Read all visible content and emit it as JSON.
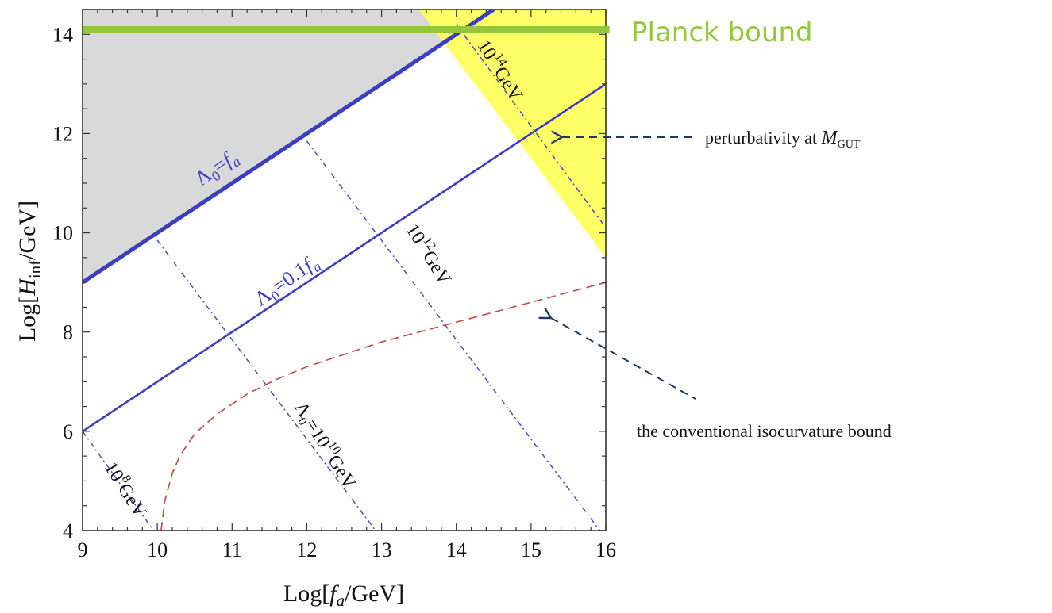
{
  "chart_data": {
    "type": "line",
    "xlabel": "Log[f_a/GeV]",
    "ylabel": "Log[H_inf/GeV]",
    "xlim": [
      9,
      16
    ],
    "ylim": [
      4,
      14.5
    ],
    "xticks": [
      9,
      10,
      11,
      12,
      13,
      14,
      15,
      16
    ],
    "yticks": [
      4,
      6,
      8,
      10,
      12,
      14
    ],
    "grid": false,
    "colors": {
      "axis": "#333333",
      "solid_line": "#3b3fbf",
      "dashdot_line": "#4a4ec0",
      "isocurvature": "#c0504d",
      "planck": "#92c83e",
      "excluded_fill": "#d9d9d9",
      "perturbativity_fill": "#ffff66",
      "annotation_arrow": "#1f3864"
    },
    "regions": [
      {
        "name": "excluded",
        "polygon": [
          [
            9,
            9
          ],
          [
            14.5,
            14.5
          ],
          [
            9,
            14.5
          ]
        ]
      },
      {
        "name": "perturbativity",
        "polygon": [
          [
            13.5,
            14.5
          ],
          [
            16,
            14.5
          ],
          [
            16,
            9.5
          ]
        ]
      }
    ],
    "series": [
      {
        "name": "Λ0=fa",
        "style": "solid-thick",
        "x": [
          9,
          14.5
        ],
        "y": [
          9,
          14.5
        ]
      },
      {
        "name": "Λ0=0.1fa",
        "style": "solid",
        "x": [
          9,
          16
        ],
        "y": [
          6,
          13
        ]
      },
      {
        "name": "10^8 GeV",
        "style": "dashdot",
        "x": [
          9,
          9.95
        ],
        "y": [
          6,
          4
        ]
      },
      {
        "name": "Λ0=10^10 GeV",
        "style": "dashdot",
        "x": [
          10,
          12.92
        ],
        "y": [
          9.85,
          4
        ]
      },
      {
        "name": "10^12 GeV",
        "style": "dashdot",
        "x": [
          12,
          15.92
        ],
        "y": [
          11.85,
          4
        ]
      },
      {
        "name": "10^14 GeV",
        "style": "dashdot",
        "x": [
          14,
          16
        ],
        "y": [
          14.2,
          10.1
        ]
      },
      {
        "name": "isocurvature",
        "style": "dashed",
        "x": [
          10.05,
          10.1,
          10.2,
          10.3,
          10.5,
          10.8,
          11.2,
          11.6,
          12,
          12.5,
          13,
          13.5,
          14,
          14.5,
          15,
          15.5,
          16
        ],
        "y": [
          4.0,
          4.6,
          5.15,
          5.5,
          5.95,
          6.35,
          6.75,
          7.05,
          7.3,
          7.55,
          7.8,
          8.0,
          8.2,
          8.4,
          8.6,
          8.8,
          9.0
        ]
      },
      {
        "name": "Planck bound",
        "style": "thick",
        "x": [
          9,
          16.05
        ],
        "y": [
          14.1,
          14.1
        ]
      }
    ],
    "labels": {
      "lambda_fa_main": "Λ",
      "lambda_fa_sub": "0",
      "lambda_fa_rest": "=",
      "lambda_fa_var": "f",
      "lambda_fa_var_sub": "a",
      "lambda_01_main": "Λ",
      "lambda_01_sub": "0",
      "lambda_01_rest": "=0.1",
      "lambda_01_var": "f",
      "lambda_01_var_sub": "a",
      "gev8_base": "10",
      "gev8_exp": "8",
      "gev8_unit": "GeV",
      "gev10_prefix": "Λ",
      "gev10_sub": "0",
      "gev10_eq": "=10",
      "gev10_exp": "10",
      "gev10_unit": "GeV",
      "gev12_base": "10",
      "gev12_exp": "12",
      "gev12_unit": "GeV",
      "gev14_base": "10",
      "gev14_exp": "14",
      "gev14_unit": "GeV"
    },
    "xlabel_parts": {
      "pre": "Log[",
      "var": "f",
      "sub": "a",
      "post": "/GeV]"
    },
    "ylabel_parts": {
      "pre": "Log[",
      "var": "H",
      "sub": "inf",
      "post": "/GeV]"
    }
  },
  "annotations": {
    "planck": "Planck bound",
    "perturbativity_text": "perturbativity at ",
    "perturbativity_var": "M",
    "perturbativity_sub": "GUT",
    "isocurvature_text": "the conventional isocurvature bound"
  }
}
